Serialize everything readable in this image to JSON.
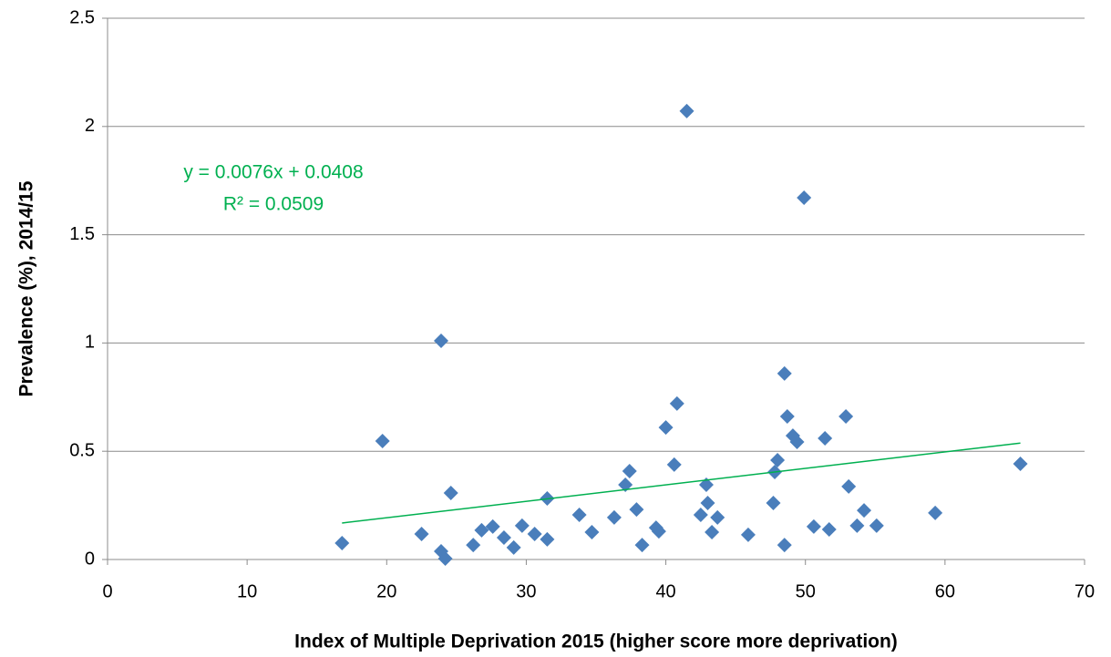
{
  "chart_data": {
    "type": "scatter",
    "x_label": "Index of Multiple Deprivation 2015 (higher score more deprivation)",
    "y_label": "Prevalence (%), 2014/15",
    "color": "#4a7ebb",
    "x": [
      16.8,
      19.7,
      22.5,
      23.9,
      23.9,
      24.2,
      24.6,
      26.2,
      26.8,
      27.6,
      28.4,
      29.1,
      29.7,
      30.6,
      31.5,
      31.5,
      33.8,
      34.7,
      36.3,
      37.1,
      37.4,
      37.9,
      38.3,
      39.3,
      39.5,
      40.0,
      40.6,
      40.8,
      41.5,
      42.5,
      42.9,
      43.0,
      43.3,
      43.7,
      45.9,
      47.7,
      47.8,
      48.0,
      48.5,
      48.5,
      48.7,
      49.1,
      49.4,
      49.9,
      50.6,
      51.4,
      51.7,
      52.9,
      53.1,
      53.7,
      54.2,
      55.1,
      59.3,
      65.4
    ],
    "values": [
      0.076,
      0.547,
      0.118,
      1.01,
      0.038,
      0.004,
      0.307,
      0.067,
      0.135,
      0.152,
      0.101,
      0.055,
      0.156,
      0.118,
      0.093,
      0.282,
      0.206,
      0.126,
      0.194,
      0.345,
      0.408,
      0.231,
      0.067,
      0.147,
      0.13,
      0.61,
      0.438,
      0.72,
      2.071,
      0.206,
      0.345,
      0.261,
      0.126,
      0.194,
      0.114,
      0.261,
      0.404,
      0.459,
      0.067,
      0.859,
      0.661,
      0.572,
      0.543,
      1.671,
      0.152,
      0.56,
      0.139,
      0.661,
      0.337,
      0.156,
      0.227,
      0.156,
      0.215,
      0.442
    ],
    "xlim": [
      0,
      70
    ],
    "xticks": [
      0,
      10,
      20,
      30,
      40,
      50,
      60,
      70
    ],
    "ylim": [
      0,
      2.5
    ],
    "yticks": [
      0,
      0.5,
      1,
      1.5,
      2,
      2.5
    ],
    "grid": true,
    "trendline": {
      "equation": "y = 0.0076x + 0.0408",
      "r2": "R² = 0.0509",
      "slope": 0.0076,
      "intercept": 0.0408,
      "color": "#00b050"
    }
  }
}
